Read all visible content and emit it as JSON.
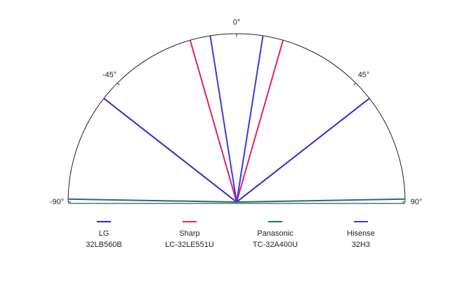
{
  "chart_data": {
    "type": "half-polar",
    "thetalim": [
      -90,
      90
    ],
    "thetaticks": [
      {
        "value": -90,
        "label": "-90°"
      },
      {
        "value": -45,
        "label": "-45°"
      },
      {
        "value": 0,
        "label": "0°"
      },
      {
        "value": 45,
        "label": "45°"
      },
      {
        "value": 90,
        "label": "90°"
      }
    ],
    "series": [
      {
        "name": "LG",
        "model": "32LB560B",
        "color": "#2b2bd0",
        "values": [
          -52,
          52
        ]
      },
      {
        "name": "Sharp",
        "model": "LC-32LE551U",
        "color": "#e0226c",
        "values": [
          -16,
          16
        ]
      },
      {
        "name": "Panasonic",
        "model": "TC-32A400U",
        "color": "#1e6e7a",
        "values": [
          -89,
          89
        ]
      },
      {
        "name": "Hisense",
        "model": "32H3",
        "color": "#3a3ae0",
        "values": [
          -9,
          9
        ]
      }
    ]
  }
}
